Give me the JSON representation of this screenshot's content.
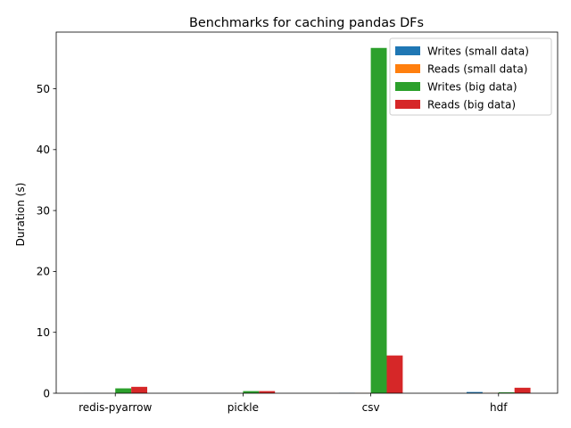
{
  "chart_data": {
    "type": "bar",
    "title": "Benchmarks for caching pandas DFs",
    "xlabel": "",
    "ylabel": "Duration (s)",
    "categories": [
      "redis-pyarrow",
      "pickle",
      "csv",
      "hdf"
    ],
    "ylim": [
      0,
      59.3
    ],
    "yticks": [
      0,
      10,
      20,
      30,
      40,
      50
    ],
    "grid": false,
    "legend_position": "upper-right",
    "series": [
      {
        "name": "Writes (small data)",
        "color": "#1f77b4",
        "values": [
          0.02,
          0.01,
          0.05,
          0.2
        ]
      },
      {
        "name": "Reads (small data)",
        "color": "#ff7f0e",
        "values": [
          0.01,
          0.01,
          0.03,
          0.05
        ]
      },
      {
        "name": "Writes (big data)",
        "color": "#2ca02c",
        "values": [
          0.8,
          0.35,
          56.7,
          0.15
        ]
      },
      {
        "name": "Reads (big data)",
        "color": "#d62728",
        "values": [
          1.05,
          0.35,
          6.2,
          0.9
        ]
      }
    ]
  }
}
